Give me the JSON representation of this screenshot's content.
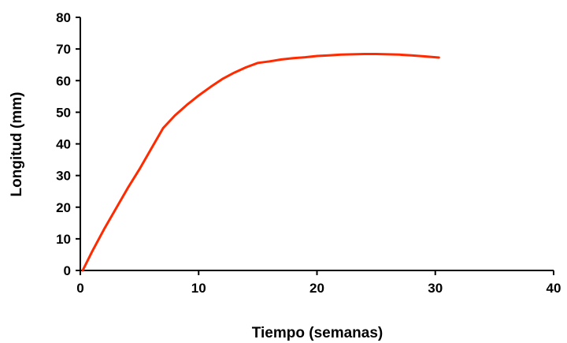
{
  "chart_data": {
    "type": "line",
    "title": "",
    "xlabel": "Tiempo (semanas)",
    "ylabel": "Longitud (mm)",
    "xlim": [
      0,
      40
    ],
    "ylim": [
      0,
      80
    ],
    "xticks": [
      0,
      10,
      20,
      30,
      40
    ],
    "xtick_labels": [
      "0",
      "10",
      "20",
      "30",
      "40"
    ],
    "yticks": [
      0,
      10,
      20,
      30,
      40,
      50,
      60,
      70,
      80
    ],
    "ytick_labels": [
      "0",
      "10",
      "20",
      "30",
      "40",
      "50",
      "60",
      "70",
      "80"
    ],
    "grid": false,
    "legend": "none",
    "series": [
      {
        "color": "#ff2a00",
        "x": [
          0.2,
          1,
          2,
          3,
          4,
          5,
          6,
          7,
          8,
          9,
          10,
          11,
          12,
          13,
          14,
          15,
          16,
          17,
          18,
          19,
          20,
          21,
          22,
          23,
          24,
          25,
          26,
          27,
          28,
          29,
          30.3
        ],
        "y": [
          0,
          6,
          13,
          19.5,
          26,
          32,
          38.5,
          45,
          49,
          52.3,
          55.3,
          58,
          60.5,
          62.5,
          64.2,
          65.6,
          66.1,
          66.7,
          67.1,
          67.4,
          67.8,
          68.0,
          68.2,
          68.3,
          68.4,
          68.4,
          68.3,
          68.2,
          68.0,
          67.7,
          67.3
        ]
      }
    ]
  }
}
